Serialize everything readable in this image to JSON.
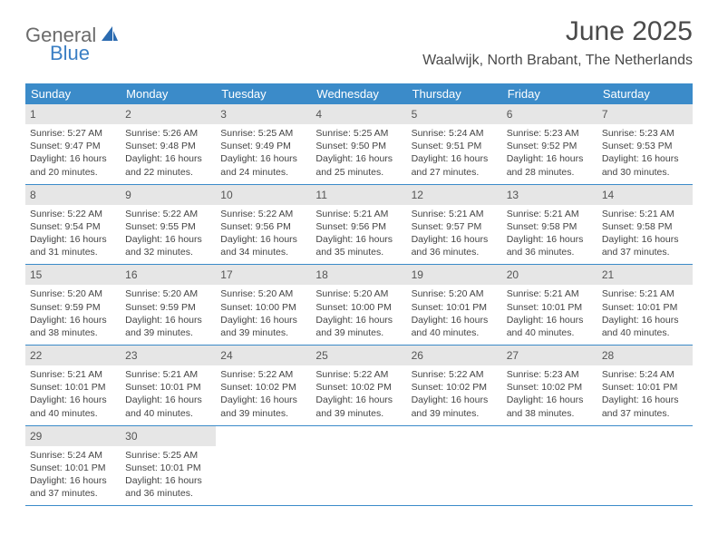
{
  "logo": {
    "part1": "General",
    "part2": "Blue"
  },
  "title": "June 2025",
  "location": "Waalwijk, North Brabant, The Netherlands",
  "colors": {
    "header_bg": "#3b8bc9",
    "daynum_bg": "#e6e6e6",
    "border": "#3b8bc9",
    "logo_gray": "#6b6b6b",
    "logo_blue": "#3b7fc4"
  },
  "weekdays": [
    "Sunday",
    "Monday",
    "Tuesday",
    "Wednesday",
    "Thursday",
    "Friday",
    "Saturday"
  ],
  "weeks": [
    [
      {
        "n": "1",
        "sr": "Sunrise: 5:27 AM",
        "ss": "Sunset: 9:47 PM",
        "d1": "Daylight: 16 hours",
        "d2": "and 20 minutes."
      },
      {
        "n": "2",
        "sr": "Sunrise: 5:26 AM",
        "ss": "Sunset: 9:48 PM",
        "d1": "Daylight: 16 hours",
        "d2": "and 22 minutes."
      },
      {
        "n": "3",
        "sr": "Sunrise: 5:25 AM",
        "ss": "Sunset: 9:49 PM",
        "d1": "Daylight: 16 hours",
        "d2": "and 24 minutes."
      },
      {
        "n": "4",
        "sr": "Sunrise: 5:25 AM",
        "ss": "Sunset: 9:50 PM",
        "d1": "Daylight: 16 hours",
        "d2": "and 25 minutes."
      },
      {
        "n": "5",
        "sr": "Sunrise: 5:24 AM",
        "ss": "Sunset: 9:51 PM",
        "d1": "Daylight: 16 hours",
        "d2": "and 27 minutes."
      },
      {
        "n": "6",
        "sr": "Sunrise: 5:23 AM",
        "ss": "Sunset: 9:52 PM",
        "d1": "Daylight: 16 hours",
        "d2": "and 28 minutes."
      },
      {
        "n": "7",
        "sr": "Sunrise: 5:23 AM",
        "ss": "Sunset: 9:53 PM",
        "d1": "Daylight: 16 hours",
        "d2": "and 30 minutes."
      }
    ],
    [
      {
        "n": "8",
        "sr": "Sunrise: 5:22 AM",
        "ss": "Sunset: 9:54 PM",
        "d1": "Daylight: 16 hours",
        "d2": "and 31 minutes."
      },
      {
        "n": "9",
        "sr": "Sunrise: 5:22 AM",
        "ss": "Sunset: 9:55 PM",
        "d1": "Daylight: 16 hours",
        "d2": "and 32 minutes."
      },
      {
        "n": "10",
        "sr": "Sunrise: 5:22 AM",
        "ss": "Sunset: 9:56 PM",
        "d1": "Daylight: 16 hours",
        "d2": "and 34 minutes."
      },
      {
        "n": "11",
        "sr": "Sunrise: 5:21 AM",
        "ss": "Sunset: 9:56 PM",
        "d1": "Daylight: 16 hours",
        "d2": "and 35 minutes."
      },
      {
        "n": "12",
        "sr": "Sunrise: 5:21 AM",
        "ss": "Sunset: 9:57 PM",
        "d1": "Daylight: 16 hours",
        "d2": "and 36 minutes."
      },
      {
        "n": "13",
        "sr": "Sunrise: 5:21 AM",
        "ss": "Sunset: 9:58 PM",
        "d1": "Daylight: 16 hours",
        "d2": "and 36 minutes."
      },
      {
        "n": "14",
        "sr": "Sunrise: 5:21 AM",
        "ss": "Sunset: 9:58 PM",
        "d1": "Daylight: 16 hours",
        "d2": "and 37 minutes."
      }
    ],
    [
      {
        "n": "15",
        "sr": "Sunrise: 5:20 AM",
        "ss": "Sunset: 9:59 PM",
        "d1": "Daylight: 16 hours",
        "d2": "and 38 minutes."
      },
      {
        "n": "16",
        "sr": "Sunrise: 5:20 AM",
        "ss": "Sunset: 9:59 PM",
        "d1": "Daylight: 16 hours",
        "d2": "and 39 minutes."
      },
      {
        "n": "17",
        "sr": "Sunrise: 5:20 AM",
        "ss": "Sunset: 10:00 PM",
        "d1": "Daylight: 16 hours",
        "d2": "and 39 minutes."
      },
      {
        "n": "18",
        "sr": "Sunrise: 5:20 AM",
        "ss": "Sunset: 10:00 PM",
        "d1": "Daylight: 16 hours",
        "d2": "and 39 minutes."
      },
      {
        "n": "19",
        "sr": "Sunrise: 5:20 AM",
        "ss": "Sunset: 10:01 PM",
        "d1": "Daylight: 16 hours",
        "d2": "and 40 minutes."
      },
      {
        "n": "20",
        "sr": "Sunrise: 5:21 AM",
        "ss": "Sunset: 10:01 PM",
        "d1": "Daylight: 16 hours",
        "d2": "and 40 minutes."
      },
      {
        "n": "21",
        "sr": "Sunrise: 5:21 AM",
        "ss": "Sunset: 10:01 PM",
        "d1": "Daylight: 16 hours",
        "d2": "and 40 minutes."
      }
    ],
    [
      {
        "n": "22",
        "sr": "Sunrise: 5:21 AM",
        "ss": "Sunset: 10:01 PM",
        "d1": "Daylight: 16 hours",
        "d2": "and 40 minutes."
      },
      {
        "n": "23",
        "sr": "Sunrise: 5:21 AM",
        "ss": "Sunset: 10:01 PM",
        "d1": "Daylight: 16 hours",
        "d2": "and 40 minutes."
      },
      {
        "n": "24",
        "sr": "Sunrise: 5:22 AM",
        "ss": "Sunset: 10:02 PM",
        "d1": "Daylight: 16 hours",
        "d2": "and 39 minutes."
      },
      {
        "n": "25",
        "sr": "Sunrise: 5:22 AM",
        "ss": "Sunset: 10:02 PM",
        "d1": "Daylight: 16 hours",
        "d2": "and 39 minutes."
      },
      {
        "n": "26",
        "sr": "Sunrise: 5:22 AM",
        "ss": "Sunset: 10:02 PM",
        "d1": "Daylight: 16 hours",
        "d2": "and 39 minutes."
      },
      {
        "n": "27",
        "sr": "Sunrise: 5:23 AM",
        "ss": "Sunset: 10:02 PM",
        "d1": "Daylight: 16 hours",
        "d2": "and 38 minutes."
      },
      {
        "n": "28",
        "sr": "Sunrise: 5:24 AM",
        "ss": "Sunset: 10:01 PM",
        "d1": "Daylight: 16 hours",
        "d2": "and 37 minutes."
      }
    ],
    [
      {
        "n": "29",
        "sr": "Sunrise: 5:24 AM",
        "ss": "Sunset: 10:01 PM",
        "d1": "Daylight: 16 hours",
        "d2": "and 37 minutes."
      },
      {
        "n": "30",
        "sr": "Sunrise: 5:25 AM",
        "ss": "Sunset: 10:01 PM",
        "d1": "Daylight: 16 hours",
        "d2": "and 36 minutes."
      },
      null,
      null,
      null,
      null,
      null
    ]
  ]
}
